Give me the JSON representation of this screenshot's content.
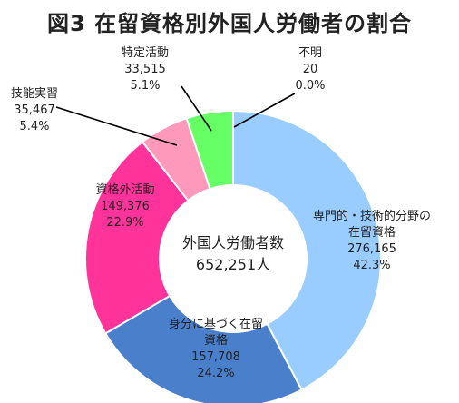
{
  "title": "図3 在留資格別外国人労働者の割合",
  "chart_data": {
    "type": "pie",
    "variant": "donut",
    "center_label": "外国人労働者数",
    "center_value": "652,251人",
    "slices": [
      {
        "label": "不明",
        "count": "20",
        "percent": "0.0%",
        "value": 0.0,
        "color": "#ffffff"
      },
      {
        "label": "専門的・技術的分野の在留資格",
        "count": "276,165",
        "percent": "42.3%",
        "value": 42.3,
        "color": "#99ccff"
      },
      {
        "label": "身分に基づく在留資格",
        "count": "157,708",
        "percent": "24.2%",
        "value": 24.2,
        "color": "#4a7fcc"
      },
      {
        "label": "資格外活動",
        "count": "149,376",
        "percent": "22.9%",
        "value": 22.9,
        "color": "#ff3399"
      },
      {
        "label": "技能実習",
        "count": "35,467",
        "percent": "5.4%",
        "value": 5.4,
        "color": "#ff99bb"
      },
      {
        "label": "特定活動",
        "count": "33,515",
        "percent": "5.1%",
        "value": 5.1,
        "color": "#66ff66"
      }
    ]
  }
}
